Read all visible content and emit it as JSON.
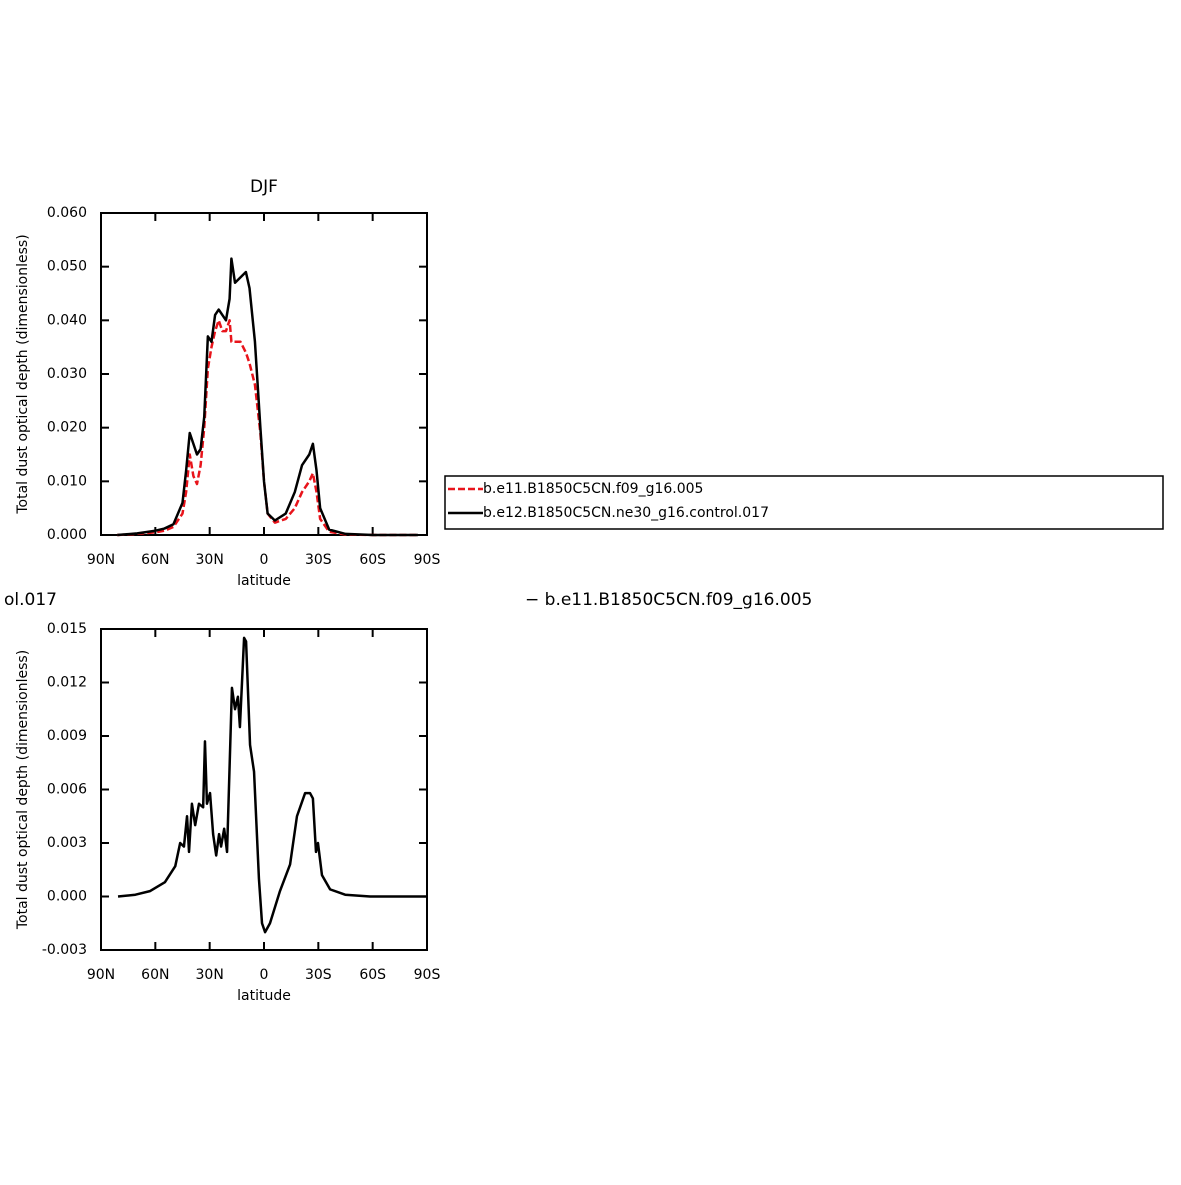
{
  "chart_data": [
    {
      "type": "line",
      "title": "DJF",
      "x_label": "latitude",
      "y_label": "Total dust optical depth (dimensionless)",
      "xlim": [
        90,
        -90
      ],
      "xticks": [
        {
          "value": 90,
          "label": "90N"
        },
        {
          "value": 60,
          "label": "60N"
        },
        {
          "value": 30,
          "label": "30N"
        },
        0,
        {
          "value": -30,
          "label": "30S"
        },
        {
          "value": -60,
          "label": "60S"
        },
        {
          "value": -90,
          "label": "90S"
        }
      ],
      "ylim": [
        0,
        0.06
      ],
      "yticks": [
        {
          "value": 0,
          "label": "0.000"
        },
        {
          "value": 0.01,
          "label": "0.010"
        },
        {
          "value": 0.02,
          "label": "0.020"
        },
        {
          "value": 0.03,
          "label": "0.030"
        },
        {
          "value": 0.04,
          "label": "0.040"
        },
        {
          "value": 0.05,
          "label": "0.050"
        },
        {
          "value": 0.06,
          "label": "0.060"
        }
      ],
      "legend": "right",
      "x": [
        81,
        70,
        60,
        55,
        50,
        45,
        43,
        41,
        39,
        37,
        35,
        33,
        31,
        29,
        27,
        25,
        23,
        21,
        19,
        18,
        16,
        13,
        10,
        8,
        5,
        2,
        0,
        -2,
        -6,
        -12,
        -17,
        -21,
        -25,
        -27,
        -29,
        -31,
        -36,
        -45,
        -60,
        -85
      ],
      "series": [
        {
          "name": "b.e11.B1850C5CN.f09_g16.005",
          "color": "#e8141b",
          "dash": "dashed",
          "values": [
            0,
            0.0002,
            0.0005,
            0.0008,
            0.0015,
            0.004,
            0.008,
            0.015,
            0.011,
            0.0095,
            0.013,
            0.02,
            0.031,
            0.035,
            0.038,
            0.04,
            0.038,
            0.038,
            0.04,
            0.036,
            0.036,
            0.036,
            0.034,
            0.032,
            0.028,
            0.019,
            0.01,
            0.004,
            0.0023,
            0.003,
            0.005,
            0.008,
            0.01,
            0.0115,
            0.008,
            0.003,
            0.0006,
            0.0001,
            0,
            0
          ]
        },
        {
          "name": "b.e12.B1850C5CN.ne30_g16.control.017",
          "color": "#000000",
          "dash": "solid",
          "values": [
            0,
            0.0003,
            0.0008,
            0.0012,
            0.002,
            0.006,
            0.012,
            0.019,
            0.017,
            0.015,
            0.016,
            0.022,
            0.037,
            0.036,
            0.041,
            0.042,
            0.041,
            0.04,
            0.044,
            0.0515,
            0.047,
            0.048,
            0.049,
            0.046,
            0.036,
            0.02,
            0.01,
            0.004,
            0.0027,
            0.004,
            0.008,
            0.013,
            0.015,
            0.017,
            0.012,
            0.005,
            0.001,
            0.0002,
            0,
            0
          ]
        }
      ]
    },
    {
      "type": "line",
      "title_left": "ol.017",
      "title_right": "− b.e11.B1850C5CN.f09_g16.005",
      "x_label": "latitude",
      "y_label": "Total dust optical depth (dimensionless)",
      "xlim": [
        90,
        -90
      ],
      "xticks": [
        {
          "value": 90,
          "label": "90N"
        },
        {
          "value": 60,
          "label": "60N"
        },
        {
          "value": 30,
          "label": "30N"
        },
        0,
        {
          "value": -30,
          "label": "30S"
        },
        {
          "value": -60,
          "label": "60S"
        },
        {
          "value": -90,
          "label": "90S"
        }
      ],
      "ylim": [
        -0.003,
        0.015
      ],
      "yticks": [
        {
          "value": -0.003,
          "label": "-0.003"
        },
        {
          "value": 0,
          "label": "0.000"
        },
        {
          "value": 0.003,
          "label": "0.003"
        },
        {
          "value": 0.006,
          "label": "0.006"
        },
        {
          "value": 0.009,
          "label": "0.009"
        },
        {
          "value": 0.012,
          "label": "0.012"
        },
        {
          "value": 0.015,
          "label": "0.015"
        }
      ],
      "x": [
        80.6,
        71,
        63,
        54.7,
        49,
        46.3,
        44.2,
        42.5,
        41.4,
        39.8,
        38,
        35.9,
        33.6,
        32.6,
        31.5,
        29.8,
        28.1,
        26.4,
        24.8,
        23.7,
        22,
        20.4,
        17.7,
        16,
        14.4,
        13.3,
        11,
        9.9,
        7.7,
        5.5,
        2.8,
        1.1,
        -0.6,
        -3.3,
        -8.8,
        -14.4,
        -18.2,
        -22.7,
        -25.4,
        -27,
        -28.7,
        -29.8,
        -32,
        -36.5,
        -44.8,
        -58.6,
        -90
      ],
      "series": [
        {
          "color": "#000000",
          "dash": "solid",
          "values": [
            0,
            0.0001,
            0.0003,
            0.0008,
            0.0017,
            0.003,
            0.0028,
            0.0045,
            0.0025,
            0.0052,
            0.004,
            0.0052,
            0.005,
            0.0087,
            0.0052,
            0.0058,
            0.0035,
            0.0023,
            0.0035,
            0.0028,
            0.0038,
            0.0025,
            0.0117,
            0.0105,
            0.0112,
            0.0095,
            0.0145,
            0.0143,
            0.0085,
            0.007,
            0.001,
            -0.0015,
            -0.002,
            -0.0015,
            0.0003,
            0.0018,
            0.0045,
            0.0058,
            0.0058,
            0.0055,
            0.0025,
            0.003,
            0.0012,
            0.0004,
            0.0001,
            0,
            0
          ]
        }
      ]
    }
  ]
}
